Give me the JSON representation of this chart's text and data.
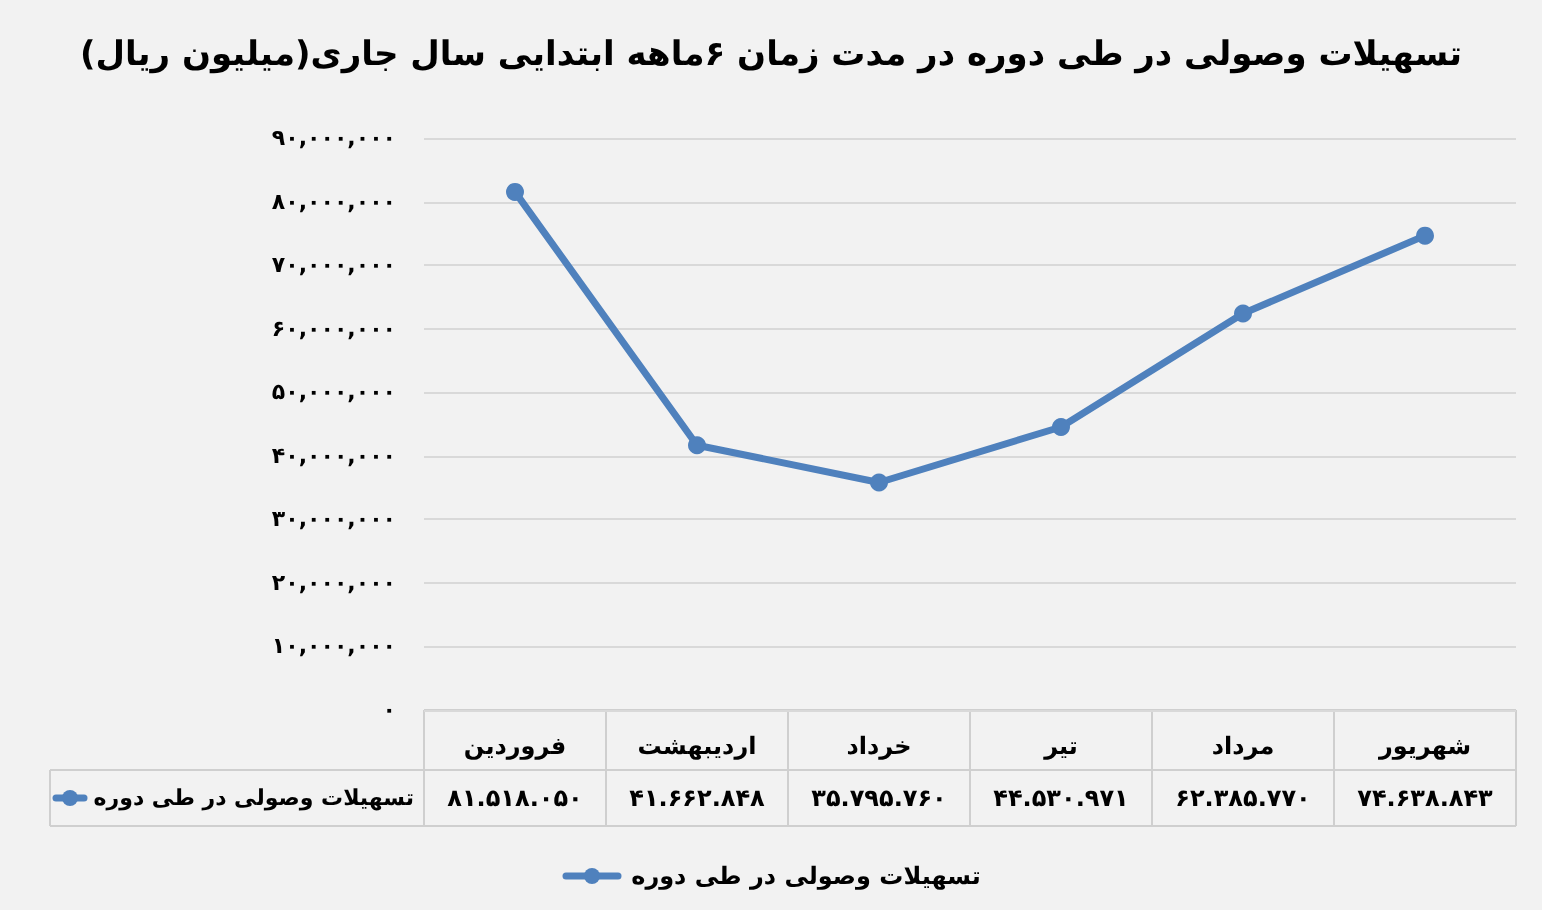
{
  "chart_data": {
    "type": "line",
    "title": "تسهیلات وصولی در طی دوره در مدت زمان ۶ماهه ابتدایی سال جاری(میلیون ریال)",
    "categories": [
      "فروردین",
      "اردیبهشت",
      "خرداد",
      "تیر",
      "مرداد",
      "شهریور"
    ],
    "series": [
      {
        "name": "تسهیلات وصولی در طی دوره",
        "color": "#4f81bd",
        "values": [
          81518050,
          41662848,
          35795760,
          44530971,
          62385770,
          74638843
        ],
        "value_labels": [
          "۸۱.۵۱۸.۰۵۰",
          "۴۱.۶۶۲.۸۴۸",
          "۳۵.۷۹۵.۷۶۰",
          "۴۴.۵۳۰.۹۷۱",
          "۶۲.۳۸۵.۷۷۰",
          "۷۴.۶۳۸.۸۴۳"
        ]
      }
    ],
    "ylim": [
      0,
      90000000
    ],
    "yticks": [
      {
        "value": 0,
        "label": "۰"
      },
      {
        "value": 10000000,
        "label": "۱۰,۰۰۰,۰۰۰"
      },
      {
        "value": 20000000,
        "label": "۲۰,۰۰۰,۰۰۰"
      },
      {
        "value": 30000000,
        "label": "۳۰,۰۰۰,۰۰۰"
      },
      {
        "value": 40000000,
        "label": "۴۰,۰۰۰,۰۰۰"
      },
      {
        "value": 50000000,
        "label": "۵۰,۰۰۰,۰۰۰"
      },
      {
        "value": 60000000,
        "label": "۶۰,۰۰۰,۰۰۰"
      },
      {
        "value": 70000000,
        "label": "۷۰,۰۰۰,۰۰۰"
      },
      {
        "value": 80000000,
        "label": "۸۰,۰۰۰,۰۰۰"
      },
      {
        "value": 90000000,
        "label": "۹۰,۰۰۰,۰۰۰"
      }
    ],
    "grid": "y",
    "legend": "bottom",
    "marker": "circle",
    "line_style": "solid"
  }
}
